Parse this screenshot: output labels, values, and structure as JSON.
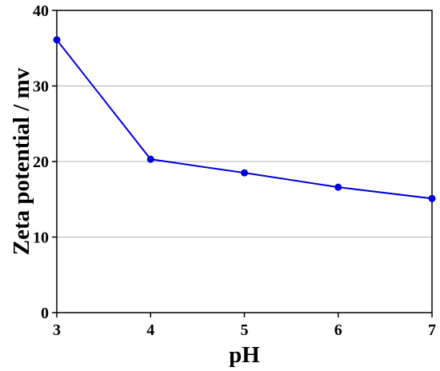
{
  "chart_data": {
    "type": "line",
    "title": "",
    "xlabel": "pH",
    "ylabel": "Zeta potential / mv",
    "x": [
      3,
      4,
      5,
      6,
      7
    ],
    "series": [
      {
        "values": [
          36.1,
          20.3,
          18.5,
          16.6,
          15.1
        ]
      }
    ],
    "xlim": [
      3,
      7
    ],
    "ylim": [
      0,
      40
    ],
    "xticks": [
      "3",
      "4",
      "5",
      "6",
      "7"
    ],
    "yticks": [
      "0",
      "10",
      "20",
      "30",
      "40"
    ],
    "grid": "horizontal",
    "legend": "none",
    "colors": {
      "series": "#0000dd",
      "grid": "#b3b3b3",
      "axis": "#000000"
    }
  }
}
